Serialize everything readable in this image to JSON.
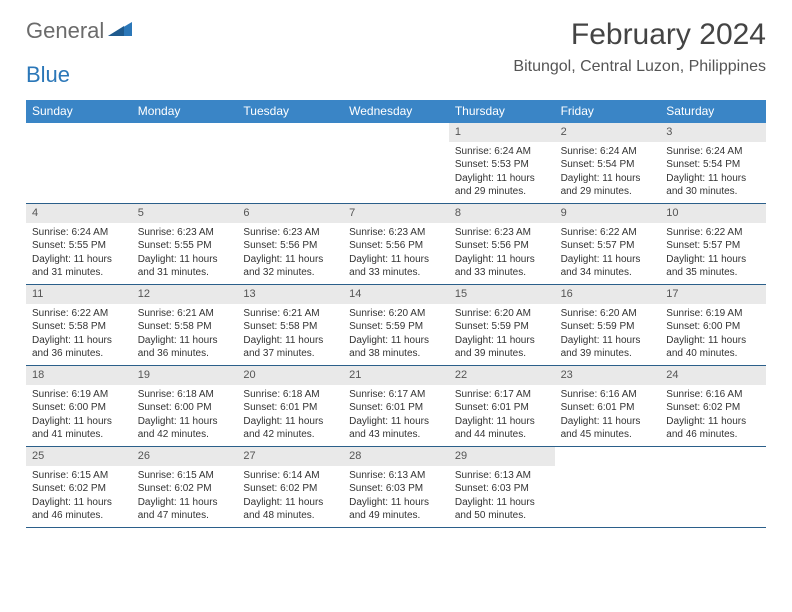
{
  "logo": {
    "word1": "General",
    "word2": "Blue"
  },
  "title": "February 2024",
  "location": "Bitungol, Central Luzon, Philippines",
  "colors": {
    "header_bg": "#3a85c6",
    "header_text": "#ffffff",
    "daynum_bg": "#e9e9e9",
    "week_border": "#2b5f8a",
    "logo_gray": "#6b6b6b",
    "logo_blue": "#2b77b8",
    "text": "#333333",
    "background": "#ffffff"
  },
  "fonts": {
    "title_size": 30,
    "location_size": 16,
    "dayhead_size": 12,
    "cell_size": 10
  },
  "day_names": [
    "Sunday",
    "Monday",
    "Tuesday",
    "Wednesday",
    "Thursday",
    "Friday",
    "Saturday"
  ],
  "weeks": [
    [
      {
        "n": "",
        "sr": "",
        "ss": "",
        "dl": ""
      },
      {
        "n": "",
        "sr": "",
        "ss": "",
        "dl": ""
      },
      {
        "n": "",
        "sr": "",
        "ss": "",
        "dl": ""
      },
      {
        "n": "",
        "sr": "",
        "ss": "",
        "dl": ""
      },
      {
        "n": "1",
        "sr": "Sunrise: 6:24 AM",
        "ss": "Sunset: 5:53 PM",
        "dl": "Daylight: 11 hours and 29 minutes."
      },
      {
        "n": "2",
        "sr": "Sunrise: 6:24 AM",
        "ss": "Sunset: 5:54 PM",
        "dl": "Daylight: 11 hours and 29 minutes."
      },
      {
        "n": "3",
        "sr": "Sunrise: 6:24 AM",
        "ss": "Sunset: 5:54 PM",
        "dl": "Daylight: 11 hours and 30 minutes."
      }
    ],
    [
      {
        "n": "4",
        "sr": "Sunrise: 6:24 AM",
        "ss": "Sunset: 5:55 PM",
        "dl": "Daylight: 11 hours and 31 minutes."
      },
      {
        "n": "5",
        "sr": "Sunrise: 6:23 AM",
        "ss": "Sunset: 5:55 PM",
        "dl": "Daylight: 11 hours and 31 minutes."
      },
      {
        "n": "6",
        "sr": "Sunrise: 6:23 AM",
        "ss": "Sunset: 5:56 PM",
        "dl": "Daylight: 11 hours and 32 minutes."
      },
      {
        "n": "7",
        "sr": "Sunrise: 6:23 AM",
        "ss": "Sunset: 5:56 PM",
        "dl": "Daylight: 11 hours and 33 minutes."
      },
      {
        "n": "8",
        "sr": "Sunrise: 6:23 AM",
        "ss": "Sunset: 5:56 PM",
        "dl": "Daylight: 11 hours and 33 minutes."
      },
      {
        "n": "9",
        "sr": "Sunrise: 6:22 AM",
        "ss": "Sunset: 5:57 PM",
        "dl": "Daylight: 11 hours and 34 minutes."
      },
      {
        "n": "10",
        "sr": "Sunrise: 6:22 AM",
        "ss": "Sunset: 5:57 PM",
        "dl": "Daylight: 11 hours and 35 minutes."
      }
    ],
    [
      {
        "n": "11",
        "sr": "Sunrise: 6:22 AM",
        "ss": "Sunset: 5:58 PM",
        "dl": "Daylight: 11 hours and 36 minutes."
      },
      {
        "n": "12",
        "sr": "Sunrise: 6:21 AM",
        "ss": "Sunset: 5:58 PM",
        "dl": "Daylight: 11 hours and 36 minutes."
      },
      {
        "n": "13",
        "sr": "Sunrise: 6:21 AM",
        "ss": "Sunset: 5:58 PM",
        "dl": "Daylight: 11 hours and 37 minutes."
      },
      {
        "n": "14",
        "sr": "Sunrise: 6:20 AM",
        "ss": "Sunset: 5:59 PM",
        "dl": "Daylight: 11 hours and 38 minutes."
      },
      {
        "n": "15",
        "sr": "Sunrise: 6:20 AM",
        "ss": "Sunset: 5:59 PM",
        "dl": "Daylight: 11 hours and 39 minutes."
      },
      {
        "n": "16",
        "sr": "Sunrise: 6:20 AM",
        "ss": "Sunset: 5:59 PM",
        "dl": "Daylight: 11 hours and 39 minutes."
      },
      {
        "n": "17",
        "sr": "Sunrise: 6:19 AM",
        "ss": "Sunset: 6:00 PM",
        "dl": "Daylight: 11 hours and 40 minutes."
      }
    ],
    [
      {
        "n": "18",
        "sr": "Sunrise: 6:19 AM",
        "ss": "Sunset: 6:00 PM",
        "dl": "Daylight: 11 hours and 41 minutes."
      },
      {
        "n": "19",
        "sr": "Sunrise: 6:18 AM",
        "ss": "Sunset: 6:00 PM",
        "dl": "Daylight: 11 hours and 42 minutes."
      },
      {
        "n": "20",
        "sr": "Sunrise: 6:18 AM",
        "ss": "Sunset: 6:01 PM",
        "dl": "Daylight: 11 hours and 42 minutes."
      },
      {
        "n": "21",
        "sr": "Sunrise: 6:17 AM",
        "ss": "Sunset: 6:01 PM",
        "dl": "Daylight: 11 hours and 43 minutes."
      },
      {
        "n": "22",
        "sr": "Sunrise: 6:17 AM",
        "ss": "Sunset: 6:01 PM",
        "dl": "Daylight: 11 hours and 44 minutes."
      },
      {
        "n": "23",
        "sr": "Sunrise: 6:16 AM",
        "ss": "Sunset: 6:01 PM",
        "dl": "Daylight: 11 hours and 45 minutes."
      },
      {
        "n": "24",
        "sr": "Sunrise: 6:16 AM",
        "ss": "Sunset: 6:02 PM",
        "dl": "Daylight: 11 hours and 46 minutes."
      }
    ],
    [
      {
        "n": "25",
        "sr": "Sunrise: 6:15 AM",
        "ss": "Sunset: 6:02 PM",
        "dl": "Daylight: 11 hours and 46 minutes."
      },
      {
        "n": "26",
        "sr": "Sunrise: 6:15 AM",
        "ss": "Sunset: 6:02 PM",
        "dl": "Daylight: 11 hours and 47 minutes."
      },
      {
        "n": "27",
        "sr": "Sunrise: 6:14 AM",
        "ss": "Sunset: 6:02 PM",
        "dl": "Daylight: 11 hours and 48 minutes."
      },
      {
        "n": "28",
        "sr": "Sunrise: 6:13 AM",
        "ss": "Sunset: 6:03 PM",
        "dl": "Daylight: 11 hours and 49 minutes."
      },
      {
        "n": "29",
        "sr": "Sunrise: 6:13 AM",
        "ss": "Sunset: 6:03 PM",
        "dl": "Daylight: 11 hours and 50 minutes."
      },
      {
        "n": "",
        "sr": "",
        "ss": "",
        "dl": ""
      },
      {
        "n": "",
        "sr": "",
        "ss": "",
        "dl": ""
      }
    ]
  ]
}
